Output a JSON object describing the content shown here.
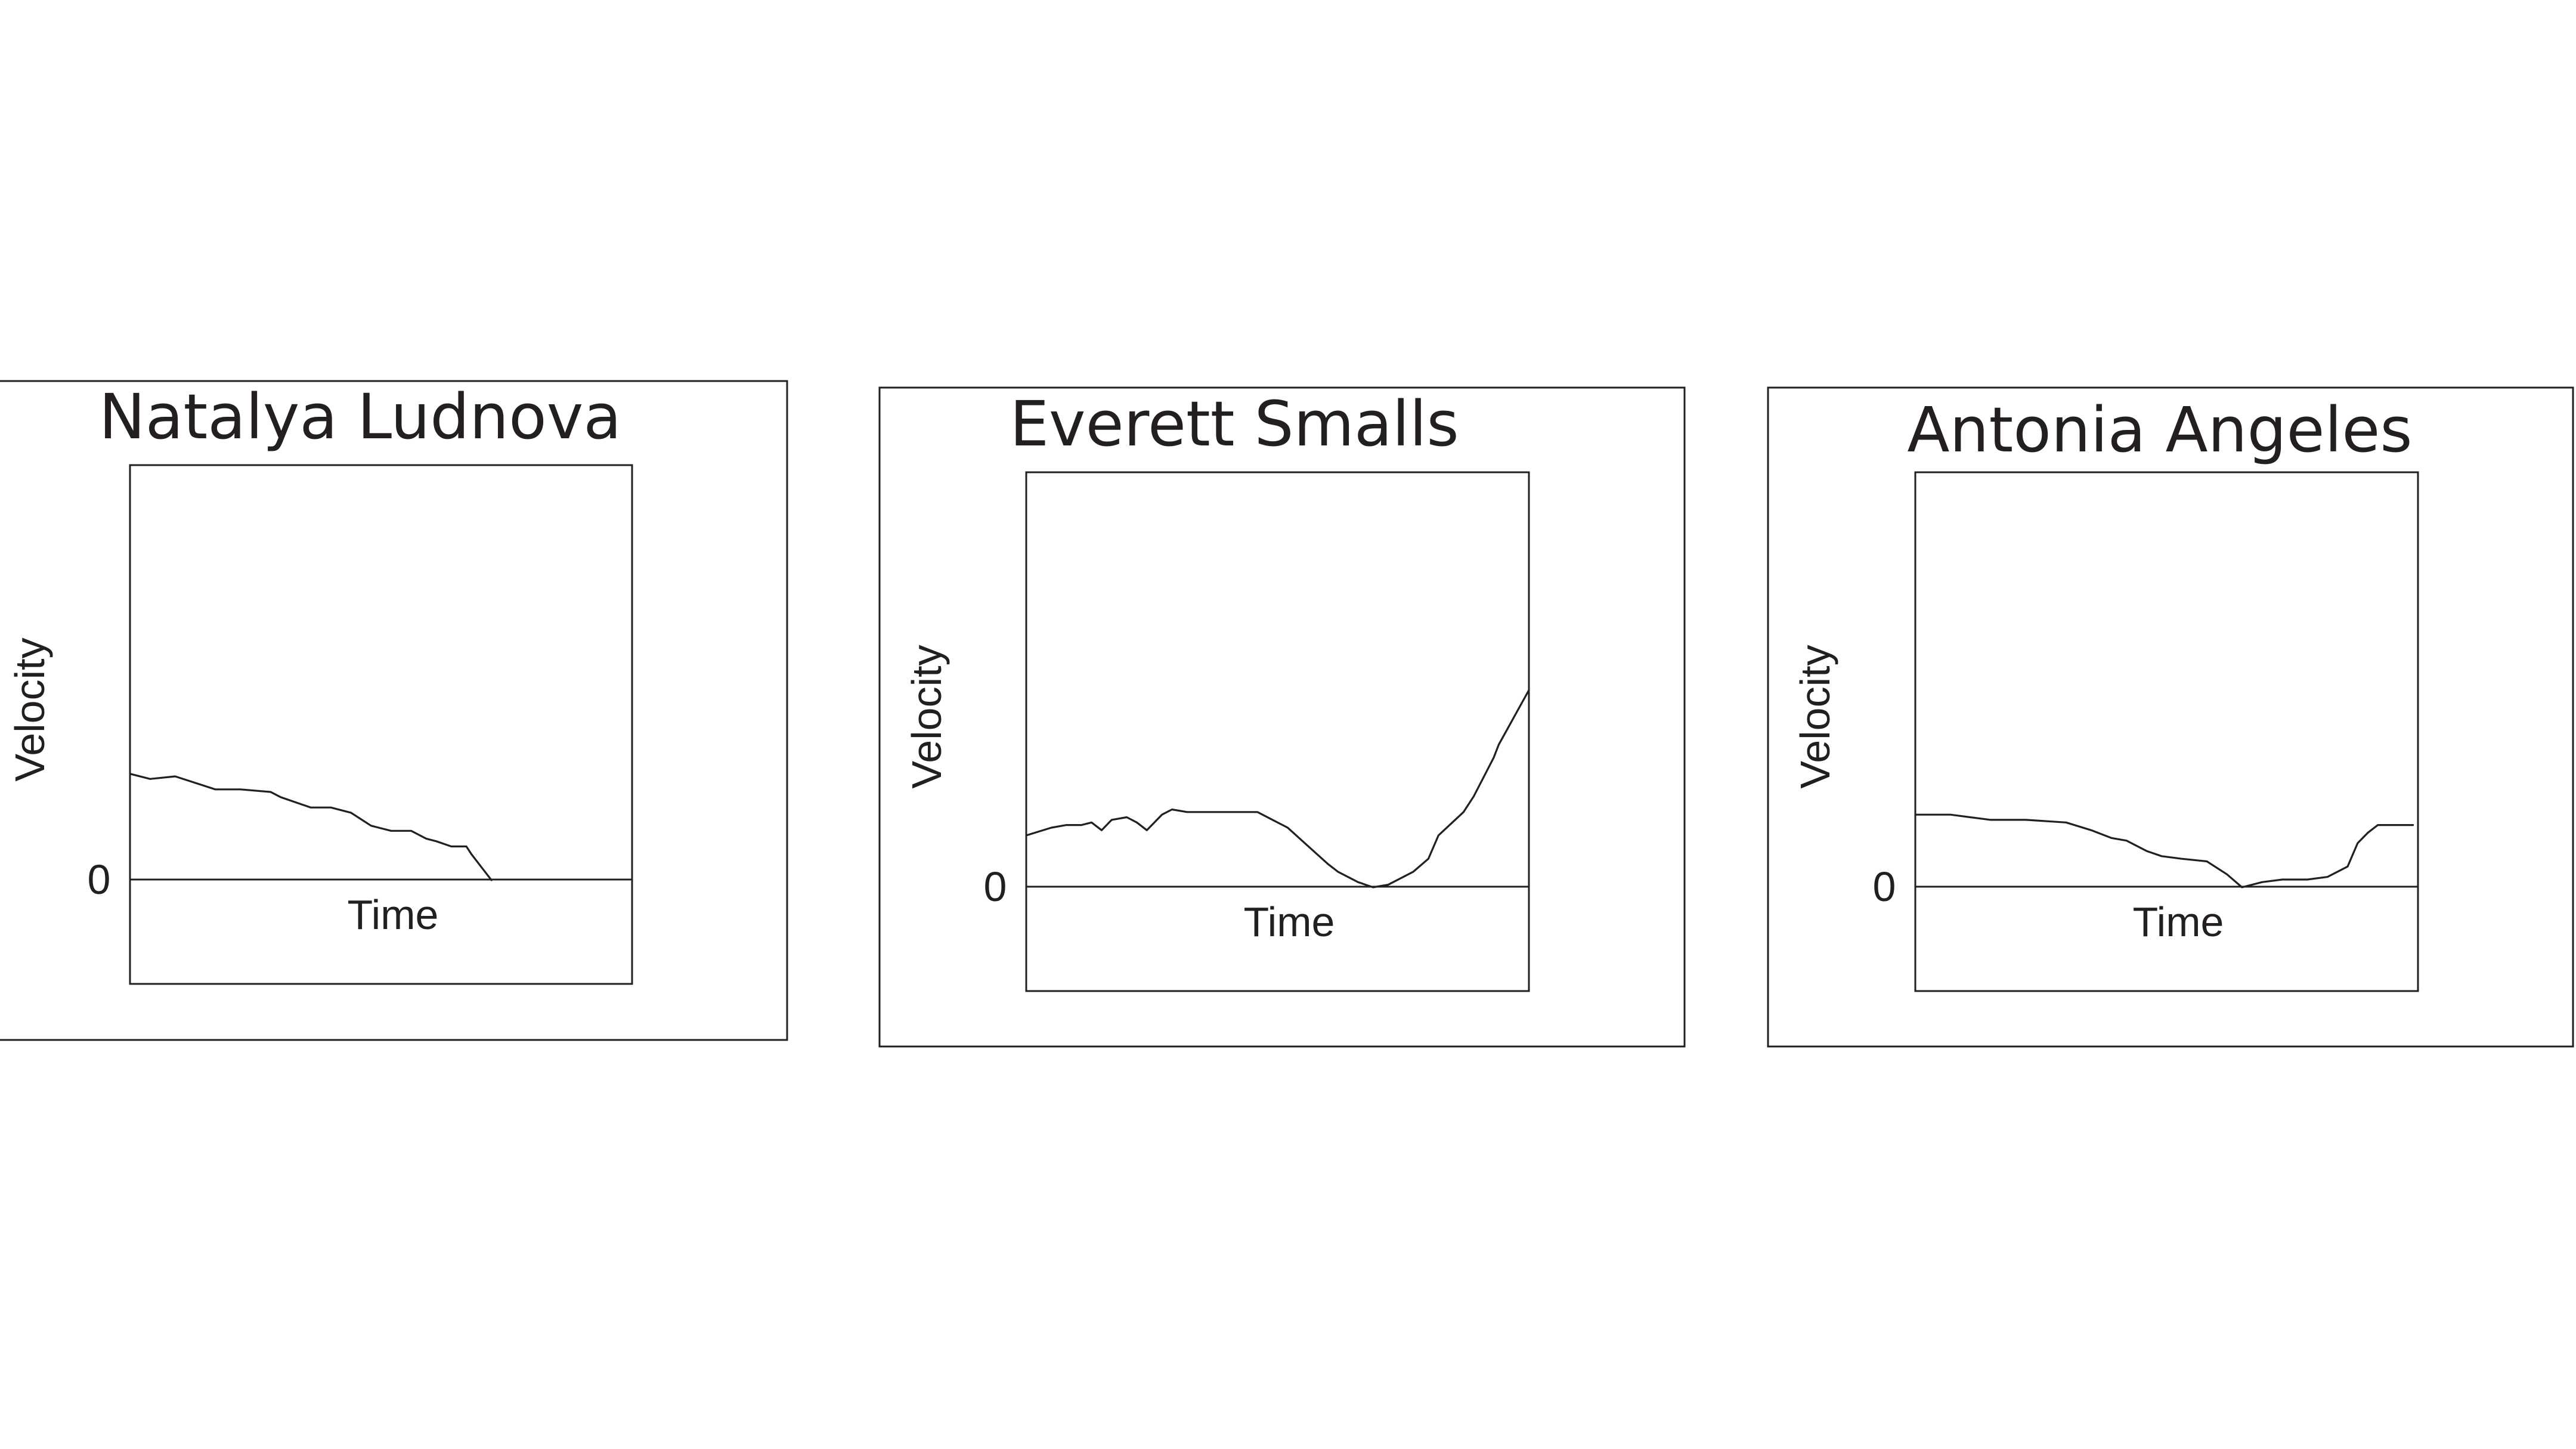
{
  "chart_data": [
    {
      "type": "line",
      "title": "Natalya Ludnova",
      "xlabel": "Time",
      "ylabel": "Velocity",
      "zero_label": "0",
      "xlim": [
        0,
        1
      ],
      "ylim": [
        -0.4,
        1.6
      ],
      "x": [
        0,
        0.04,
        0.09,
        0.17,
        0.22,
        0.28,
        0.3,
        0.36,
        0.4,
        0.44,
        0.48,
        0.52,
        0.56,
        0.59,
        0.61,
        0.64,
        0.67,
        0.68,
        0.7,
        0.72
      ],
      "y": [
        0.41,
        0.39,
        0.4,
        0.35,
        0.35,
        0.34,
        0.32,
        0.28,
        0.28,
        0.26,
        0.21,
        0.19,
        0.19,
        0.16,
        0.15,
        0.13,
        0.13,
        0.1,
        0.05,
        0.0
      ]
    },
    {
      "type": "line",
      "title": "Everett Smalls",
      "xlabel": "Time",
      "ylabel": "Velocity",
      "zero_label": "0",
      "xlim": [
        0,
        1
      ],
      "ylim": [
        -0.4,
        1.6
      ],
      "x": [
        0,
        0.05,
        0.08,
        0.11,
        0.13,
        0.15,
        0.17,
        0.2,
        0.22,
        0.24,
        0.27,
        0.29,
        0.32,
        0.34,
        0.37,
        0.42,
        0.46,
        0.49,
        0.52,
        0.56,
        0.6,
        0.62,
        0.66,
        0.69,
        0.72,
        0.77,
        0.8,
        0.82,
        0.87,
        0.89,
        0.93,
        0.94,
        0.96,
        0.98,
        1.0
      ],
      "y": [
        0.2,
        0.23,
        0.24,
        0.24,
        0.25,
        0.22,
        0.26,
        0.27,
        0.25,
        0.22,
        0.28,
        0.3,
        0.29,
        0.29,
        0.29,
        0.29,
        0.29,
        0.26,
        0.23,
        0.16,
        0.09,
        0.06,
        0.02,
        0.0,
        0.01,
        0.06,
        0.11,
        0.2,
        0.29,
        0.35,
        0.5,
        0.55,
        0.62,
        0.69,
        0.76
      ]
    },
    {
      "type": "line",
      "title": "Antonia Angeles",
      "xlabel": "Time",
      "ylabel": "Velocity",
      "zero_label": "0",
      "xlim": [
        0,
        1
      ],
      "ylim": [
        -0.4,
        1.6
      ],
      "x": [
        0,
        0.07,
        0.15,
        0.22,
        0.3,
        0.35,
        0.39,
        0.42,
        0.46,
        0.49,
        0.53,
        0.58,
        0.62,
        0.65,
        0.69,
        0.73,
        0.78,
        0.82,
        0.86,
        0.88,
        0.9,
        0.92,
        0.95,
        0.99
      ],
      "y": [
        0.28,
        0.28,
        0.26,
        0.26,
        0.25,
        0.22,
        0.19,
        0.18,
        0.14,
        0.12,
        0.11,
        0.1,
        0.05,
        0.0,
        0.02,
        0.03,
        0.03,
        0.04,
        0.08,
        0.17,
        0.21,
        0.24,
        0.24,
        0.24
      ]
    }
  ]
}
